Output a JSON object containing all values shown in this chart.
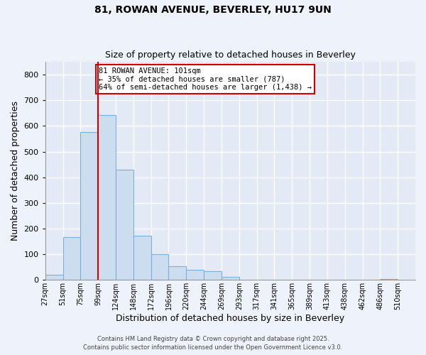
{
  "title1": "81, ROWAN AVENUE, BEVERLEY, HU17 9UN",
  "title2": "Size of property relative to detached houses in Beverley",
  "xlabel": "Distribution of detached houses by size in Beverley",
  "ylabel": "Number of detached properties",
  "bar_left_edges": [
    0,
    1,
    2,
    3,
    4,
    5,
    6,
    7,
    8,
    9,
    10,
    11,
    12,
    13,
    14,
    15,
    16,
    17,
    18,
    19
  ],
  "bar_heights": [
    20,
    168,
    577,
    642,
    430,
    172,
    101,
    52,
    40,
    33,
    12,
    0,
    0,
    0,
    0,
    0,
    0,
    0,
    0,
    3
  ],
  "xtick_labels": [
    "27sqm",
    "51sqm",
    "75sqm",
    "99sqm",
    "124sqm",
    "148sqm",
    "172sqm",
    "196sqm",
    "220sqm",
    "244sqm",
    "269sqm",
    "293sqm",
    "317sqm",
    "341sqm",
    "365sqm",
    "389sqm",
    "413sqm",
    "438sqm",
    "462sqm",
    "486sqm",
    "510sqm"
  ],
  "vline_x": 3,
  "vline_color": "#cc0000",
  "annotation_text": "81 ROWAN AVENUE: 101sqm\n← 35% of detached houses are smaller (787)\n64% of semi-detached houses are larger (1,438) →",
  "bar_color": "#ccddf0",
  "bar_edgecolor": "#7ab0d8",
  "ylim": [
    0,
    850
  ],
  "yticks": [
    0,
    100,
    200,
    300,
    400,
    500,
    600,
    700,
    800
  ],
  "footer1": "Contains HM Land Registry data © Crown copyright and database right 2025.",
  "footer2": "Contains public sector information licensed under the Open Government Licence v3.0.",
  "bg_color": "#eef2fa",
  "plot_bg": "#e4eaf5",
  "grid_color": "#ffffff"
}
